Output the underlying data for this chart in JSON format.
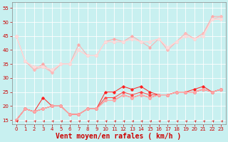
{
  "background_color": "#c8f0f0",
  "grid_color": "#ffffff",
  "xlabel": "Vent moyen/en rafales ( km/h )",
  "xlabel_color": "#cc0000",
  "xlabel_fontsize": 7,
  "yticks": [
    15,
    20,
    25,
    30,
    35,
    40,
    45,
    50,
    55
  ],
  "xticks": [
    0,
    1,
    2,
    3,
    4,
    5,
    6,
    7,
    8,
    9,
    10,
    11,
    12,
    13,
    14,
    15,
    16,
    17,
    18,
    19,
    20,
    21,
    22,
    23
  ],
  "xlim": [
    -0.5,
    23.5
  ],
  "ylim": [
    13.5,
    57
  ],
  "x": [
    0,
    1,
    2,
    3,
    4,
    5,
    6,
    7,
    8,
    9,
    10,
    11,
    12,
    13,
    14,
    15,
    16,
    17,
    18,
    19,
    20,
    21,
    22,
    23
  ],
  "upper1": [
    45,
    36,
    33,
    35,
    32,
    35,
    35,
    42,
    38,
    38,
    43,
    44,
    43,
    45,
    43,
    41,
    44,
    40,
    43,
    46,
    44,
    46,
    52,
    52
  ],
  "upper2": [
    45,
    36,
    33,
    34,
    32,
    35,
    35,
    40,
    38,
    38,
    43,
    43,
    43,
    44,
    43,
    43,
    44,
    40,
    43,
    46,
    44,
    46,
    51,
    52
  ],
  "upper3": [
    45,
    36,
    34,
    34,
    33,
    35,
    35,
    40,
    38,
    38,
    43,
    43,
    43,
    44,
    43,
    43,
    44,
    41,
    43,
    45,
    44,
    45,
    51,
    51
  ],
  "upper4": [
    45,
    36,
    34,
    34,
    33,
    35,
    35,
    40,
    38,
    38,
    43,
    43,
    43,
    44,
    43,
    43,
    44,
    41,
    43,
    45,
    44,
    45,
    51,
    51
  ],
  "upper5": [
    45,
    36,
    34,
    34,
    33,
    35,
    35,
    40,
    38,
    38,
    43,
    43,
    43,
    44,
    43,
    43,
    44,
    41,
    43,
    45,
    44,
    45,
    51,
    51
  ],
  "lower1": [
    15,
    19,
    18,
    23,
    20,
    20,
    17,
    17,
    19,
    19,
    25,
    25,
    27,
    26,
    27,
    25,
    24,
    24,
    25,
    25,
    26,
    27,
    25,
    26
  ],
  "lower2": [
    15,
    19,
    18,
    19,
    20,
    20,
    17,
    17,
    19,
    19,
    23,
    23,
    25,
    24,
    25,
    24,
    24,
    24,
    25,
    25,
    25,
    26,
    25,
    26
  ],
  "lower3": [
    15,
    19,
    18,
    19,
    20,
    20,
    17,
    17,
    19,
    19,
    22,
    22,
    24,
    23,
    24,
    23,
    24,
    24,
    25,
    25,
    25,
    26,
    25,
    26
  ],
  "lower4": [
    15,
    19,
    18,
    19,
    20,
    20,
    17,
    17,
    19,
    19,
    22,
    22,
    24,
    23,
    24,
    23,
    24,
    24,
    25,
    25,
    25,
    26,
    25,
    26
  ],
  "lower5": [
    15,
    19,
    18,
    19,
    20,
    20,
    17,
    17,
    19,
    19,
    22,
    22,
    24,
    23,
    24,
    23,
    24,
    24,
    25,
    25,
    25,
    26,
    25,
    26
  ],
  "upper_colors": [
    "#ffaaaa",
    "#ffbbbb",
    "#ffcccc",
    "#ffcccc",
    "#ffdddd"
  ],
  "lower_colors": [
    "#ff2222",
    "#ff4444",
    "#ff6666",
    "#ff8888",
    "#ffaaaa"
  ],
  "arrow_color": "#cc0000",
  "tick_color": "#cc0000",
  "spine_color": "#888888"
}
